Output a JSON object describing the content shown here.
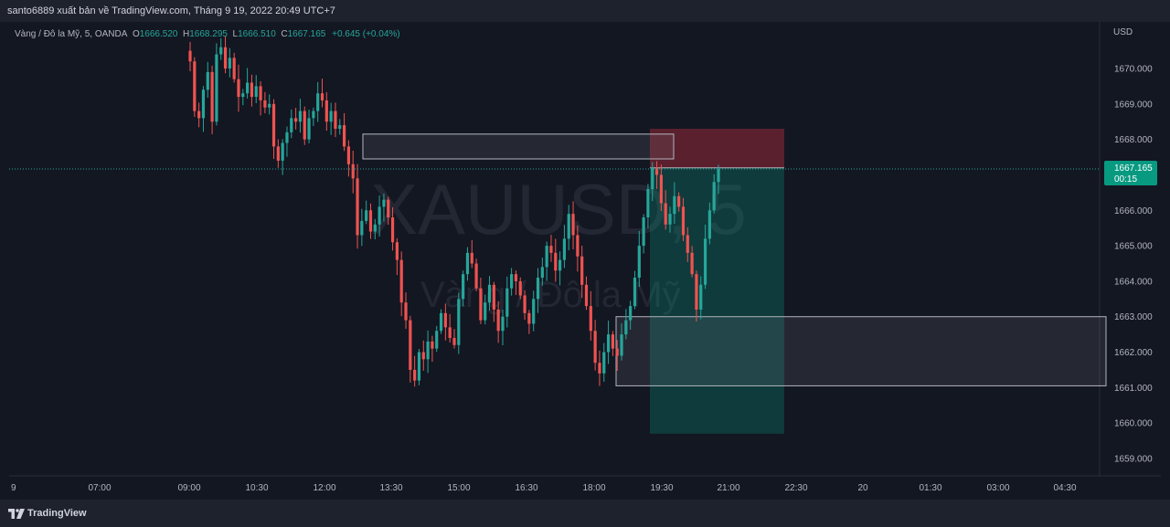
{
  "header": {
    "published_by": "santo6889 xuất bản về TradingView.com, Tháng 9 19, 2022 20:49 UTC+7"
  },
  "legend": {
    "symbol": "Vàng / Đô la Mỹ, 5, OANDA",
    "o_label": "O",
    "o_value": "1666.520",
    "h_label": "H",
    "h_value": "1668.295",
    "l_label": "L",
    "l_value": "1666.510",
    "c_label": "C",
    "c_value": "1667.165",
    "change": "+0.645 (+0.04%)"
  },
  "watermark": {
    "ticker": "XAUUSD, 5",
    "name": "Vàng / Đô la Mỹ"
  },
  "price_axis": {
    "currency": "USD",
    "current_price": "1667.165",
    "countdown": "00:15"
  },
  "footer": {
    "brand": "TradingView"
  },
  "colors": {
    "up": "#26a69a",
    "down": "#ef5350",
    "background": "#131722",
    "price_label": "#089981"
  },
  "chart_data": {
    "type": "candlestick",
    "instrument": "XAUUSD",
    "interval": "5",
    "ylim": [
      1658.5,
      1670.6
    ],
    "y_ticks": [
      "1659.000",
      "1660.000",
      "1661.000",
      "1662.000",
      "1663.000",
      "1664.000",
      "1665.000",
      "1666.000",
      "1667.000",
      "1668.000",
      "1669.000",
      "1670.000"
    ],
    "x_ticks": [
      "9",
      "07:00",
      "09:00",
      "10:30",
      "12:00",
      "13:30",
      "15:00",
      "16:30",
      "18:00",
      "19:30",
      "21:00",
      "22:30",
      "20",
      "01:30",
      "03:00",
      "04:30"
    ],
    "current_price": 1667.165,
    "candles_start_tick": "09:00",
    "candles_end_tick": "21:00",
    "candle_closes": [
      1670.2,
      1668.8,
      1668.6,
      1669.4,
      1669.9,
      1668.5,
      1670.4,
      1670.6,
      1670.0,
      1670.3,
      1669.7,
      1669.2,
      1669.3,
      1669.6,
      1669.2,
      1669.5,
      1669.1,
      1668.9,
      1669.0,
      1667.8,
      1667.4,
      1667.9,
      1668.2,
      1668.6,
      1668.5,
      1668.8,
      1668.0,
      1668.6,
      1668.8,
      1669.3,
      1669.1,
      1668.5,
      1668.8,
      1668.3,
      1668.4,
      1667.8,
      1667.3,
      1666.9,
      1665.3,
      1665.7,
      1666.0,
      1665.4,
      1665.6,
      1666.1,
      1666.3,
      1665.8,
      1665.1,
      1664.6,
      1663.4,
      1662.9,
      1661.5,
      1661.2,
      1662.0,
      1661.8,
      1662.3,
      1662.1,
      1662.6,
      1663.1,
      1662.7,
      1662.4,
      1662.2,
      1663.5,
      1664.2,
      1664.8,
      1664.5,
      1663.8,
      1662.9,
      1663.4,
      1663.9,
      1663.2,
      1662.6,
      1663.0,
      1663.8,
      1664.2,
      1664.0,
      1663.6,
      1663.1,
      1662.8,
      1663.5,
      1664.1,
      1664.4,
      1665.0,
      1664.8,
      1664.3,
      1664.6,
      1665.2,
      1665.9,
      1665.3,
      1664.7,
      1663.9,
      1663.3,
      1662.6,
      1661.7,
      1661.4,
      1662.0,
      1662.5,
      1662.1,
      1661.9,
      1662.5,
      1662.9,
      1663.3,
      1664.1,
      1665.0,
      1665.8,
      1666.6,
      1667.2,
      1667.0,
      1666.2,
      1665.6,
      1665.9,
      1666.4,
      1666.1,
      1665.3,
      1664.8,
      1664.2,
      1663.2,
      1663.9,
      1665.2,
      1666.0,
      1666.8,
      1667.165
    ],
    "zones": [
      {
        "type": "rectangle",
        "price_top": 1668.15,
        "price_bottom": 1667.45
      },
      {
        "type": "rectangle",
        "price_top": 1663.0,
        "price_bottom": 1661.05
      }
    ],
    "position": {
      "type": "short",
      "entry": 1667.2,
      "stop": 1668.3,
      "target": 1659.7
    }
  }
}
